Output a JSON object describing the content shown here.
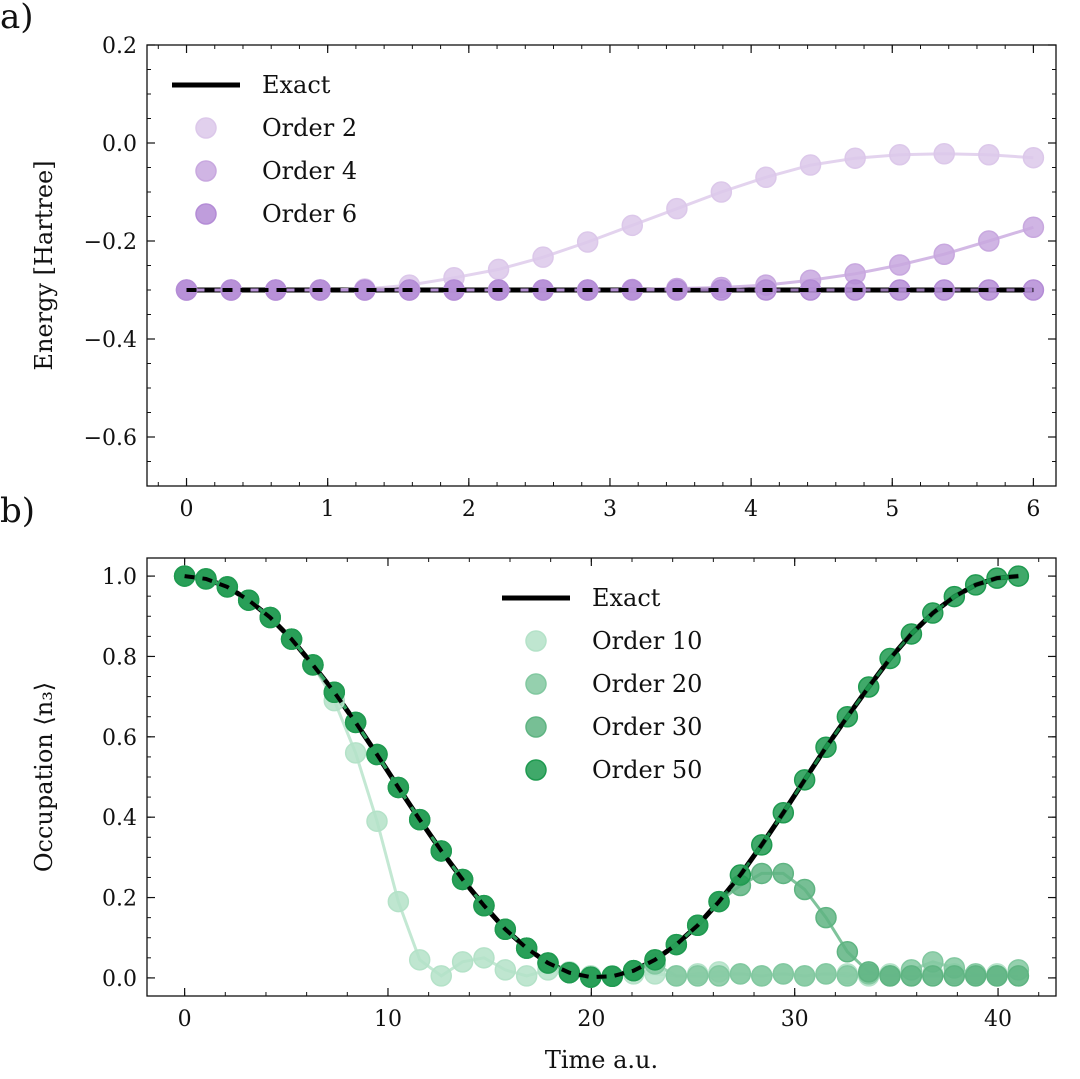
{
  "chart_data": [
    {
      "panel_label": "a)",
      "type": "line",
      "xlabel": "",
      "ylabel": "Energy [Hartree]",
      "xlim": [
        -0.28,
        6.16
      ],
      "ylim": [
        -0.7,
        0.2
      ],
      "xticks": [
        0,
        1,
        2,
        3,
        4,
        5,
        6
      ],
      "xtick_labels": [
        "0",
        "1",
        "2",
        "3",
        "4",
        "5",
        "6"
      ],
      "yticks": [
        0.2,
        0.0,
        -0.2,
        -0.4,
        -0.6
      ],
      "ytick_labels": [
        "0.2",
        "0.0",
        "−0.2",
        "−0.4",
        "−0.6"
      ],
      "grid": false,
      "legend_position": "top-left",
      "x": [
        0,
        0.316,
        0.632,
        0.947,
        1.263,
        1.579,
        1.895,
        2.211,
        2.526,
        2.842,
        3.158,
        3.474,
        3.789,
        4.105,
        4.421,
        4.737,
        5.053,
        5.368,
        5.684,
        6.0
      ],
      "series": [
        {
          "name": "Exact",
          "style": "line",
          "color": "#000000",
          "values": [
            -0.3,
            -0.3,
            -0.3,
            -0.3,
            -0.3,
            -0.3,
            -0.3,
            -0.3,
            -0.3,
            -0.3,
            -0.3,
            -0.3,
            -0.3,
            -0.3,
            -0.3,
            -0.3,
            -0.3,
            -0.3,
            -0.3,
            -0.3
          ]
        },
        {
          "name": "Order 2",
          "style": "markers",
          "color": "#dcc8ea",
          "values": [
            -0.3,
            -0.3,
            -0.3,
            -0.3,
            -0.298,
            -0.29,
            -0.275,
            -0.258,
            -0.233,
            -0.202,
            -0.168,
            -0.134,
            -0.1,
            -0.07,
            -0.045,
            -0.031,
            -0.024,
            -0.022,
            -0.024,
            -0.03
          ]
        },
        {
          "name": "Order 4",
          "style": "markers",
          "color": "#c8a8df",
          "values": [
            -0.3,
            -0.3,
            -0.3,
            -0.3,
            -0.3,
            -0.3,
            -0.3,
            -0.3,
            -0.3,
            -0.3,
            -0.299,
            -0.297,
            -0.295,
            -0.29,
            -0.28,
            -0.267,
            -0.249,
            -0.227,
            -0.2,
            -0.172
          ]
        },
        {
          "name": "Order 6",
          "style": "markers",
          "color": "#b48cd6",
          "values": [
            -0.3,
            -0.3,
            -0.3,
            -0.3,
            -0.3,
            -0.3,
            -0.3,
            -0.3,
            -0.3,
            -0.3,
            -0.3,
            -0.3,
            -0.3,
            -0.3,
            -0.3,
            -0.3,
            -0.3,
            -0.3,
            -0.3,
            -0.3
          ]
        }
      ]
    },
    {
      "panel_label": "b)",
      "type": "line",
      "xlabel": "Time a.u.",
      "ylabel": "Occupation ⟨n₃⟩",
      "xlim": [
        -1.85,
        42.85
      ],
      "ylim": [
        -0.045,
        1.045
      ],
      "xticks": [
        0,
        10,
        20,
        30,
        40
      ],
      "xtick_labels": [
        "0",
        "10",
        "20",
        "30",
        "40"
      ],
      "yticks": [
        1.0,
        0.8,
        0.6,
        0.4,
        0.2,
        0.0
      ],
      "ytick_labels": [
        "1.0",
        "0.8",
        "0.6",
        "0.4",
        "0.2",
        "0.0"
      ],
      "grid": false,
      "legend_position": "top-center",
      "x": [
        0,
        1.05,
        2.1,
        3.15,
        4.21,
        5.26,
        6.31,
        7.36,
        8.41,
        9.46,
        10.51,
        11.56,
        12.62,
        13.67,
        14.72,
        15.77,
        16.82,
        17.87,
        18.92,
        19.97,
        21.03,
        22.08,
        23.13,
        24.18,
        25.23,
        26.28,
        27.33,
        28.38,
        29.44,
        30.49,
        31.54,
        32.59,
        33.64,
        34.69,
        35.74,
        36.79,
        37.85,
        38.9,
        39.95,
        41.0
      ],
      "series": [
        {
          "name": "Exact",
          "style": "line",
          "color": "#000000",
          "values": [
            1.0,
            0.993,
            0.973,
            0.94,
            0.897,
            0.843,
            0.779,
            0.711,
            0.636,
            0.556,
            0.474,
            0.394,
            0.316,
            0.245,
            0.18,
            0.121,
            0.074,
            0.037,
            0.013,
            0.002,
            0.004,
            0.018,
            0.045,
            0.083,
            0.131,
            0.19,
            0.256,
            0.331,
            0.411,
            0.493,
            0.574,
            0.65,
            0.724,
            0.795,
            0.856,
            0.908,
            0.949,
            0.978,
            0.995,
            1.0
          ]
        },
        {
          "name": "Order 10",
          "style": "markers",
          "color": "#b4e2c8",
          "values": [
            1.0,
            0.993,
            0.973,
            0.94,
            0.897,
            0.843,
            0.779,
            0.69,
            0.56,
            0.39,
            0.19,
            0.045,
            0.005,
            0.04,
            0.05,
            0.02,
            0.005,
            0.02,
            0.015,
            0.005,
            0.005,
            0.01,
            0.01,
            0.005,
            0.01,
            0.015,
            0.01,
            0.005,
            0.01,
            0.005,
            0.01,
            0.01,
            0.005,
            0.01,
            0.005,
            0.01,
            0.01,
            0.005,
            0.01,
            0.005
          ]
        },
        {
          "name": "Order 20",
          "style": "markers",
          "color": "#82c8a0",
          "values": [
            1.0,
            0.993,
            0.973,
            0.94,
            0.897,
            0.843,
            0.779,
            0.711,
            0.636,
            0.556,
            0.474,
            0.394,
            0.316,
            0.245,
            0.18,
            0.121,
            0.074,
            0.037,
            0.013,
            0.002,
            0.004,
            0.018,
            0.035,
            0.005,
            0.005,
            0.005,
            0.01,
            0.005,
            0.01,
            0.005,
            0.01,
            0.005,
            0.01,
            0.005,
            0.02,
            0.04,
            0.025,
            0.01,
            0.005,
            0.02
          ]
        },
        {
          "name": "Order 30",
          "style": "markers",
          "color": "#5fb482",
          "values": [
            1.0,
            0.993,
            0.973,
            0.94,
            0.897,
            0.843,
            0.779,
            0.711,
            0.636,
            0.556,
            0.474,
            0.394,
            0.316,
            0.245,
            0.18,
            0.121,
            0.074,
            0.037,
            0.013,
            0.002,
            0.004,
            0.018,
            0.045,
            0.083,
            0.131,
            0.19,
            0.23,
            0.26,
            0.26,
            0.22,
            0.15,
            0.065,
            0.015,
            0.005,
            0.005,
            0.005,
            0.005,
            0.005,
            0.005,
            0.005
          ]
        },
        {
          "name": "Order 50",
          "style": "markers",
          "color": "#1f9a50",
          "values": [
            1.0,
            0.993,
            0.973,
            0.94,
            0.897,
            0.843,
            0.779,
            0.711,
            0.636,
            0.556,
            0.474,
            0.394,
            0.316,
            0.245,
            0.18,
            0.121,
            0.074,
            0.037,
            0.013,
            0.002,
            0.004,
            0.018,
            0.045,
            0.083,
            0.131,
            0.19,
            0.256,
            0.331,
            0.411,
            0.493,
            0.574,
            0.65,
            0.724,
            0.795,
            0.856,
            0.908,
            0.949,
            0.978,
            0.995,
            1.0
          ]
        }
      ]
    }
  ]
}
